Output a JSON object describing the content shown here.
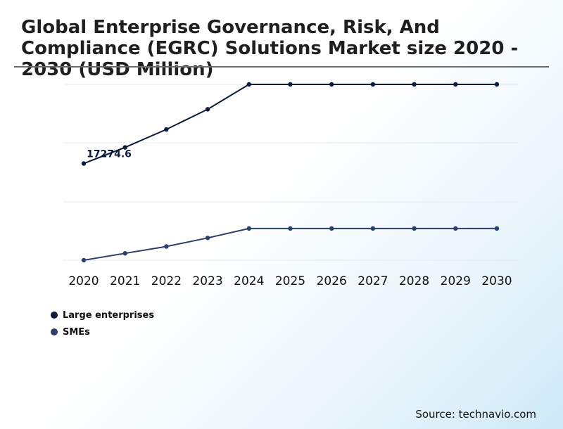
{
  "chart_data": {
    "type": "line",
    "title": "Global Enterprise Governance, Risk, And Compliance (EGRC) Solutions Market size 2020 - 2030 (USD Million)",
    "categories": [
      "2020",
      "2021",
      "2022",
      "2023",
      "2024",
      "2025",
      "2026",
      "2027",
      "2028",
      "2029",
      "2030"
    ],
    "series": [
      {
        "name": "Large enterprises",
        "color": "#0b1a3d",
        "values": [
          17274.6,
          19150,
          21250,
          23600,
          26500,
          26500,
          26500,
          26500,
          26500,
          26500,
          26500
        ]
      },
      {
        "name": "SMEs",
        "color": "#2c3e6b",
        "values": [
          6000,
          6800,
          7600,
          8600,
          9700,
          9700,
          9700,
          9700,
          9700,
          9700,
          9700
        ]
      }
    ],
    "annotations": [
      {
        "series": "Large enterprises",
        "category": "2020",
        "label": "17274.6"
      }
    ],
    "ylim": [
      6000,
      26500
    ],
    "grid": true,
    "xlabel": "",
    "ylabel": "",
    "legend": "bottom-left"
  },
  "source": "Source: technavio.com"
}
